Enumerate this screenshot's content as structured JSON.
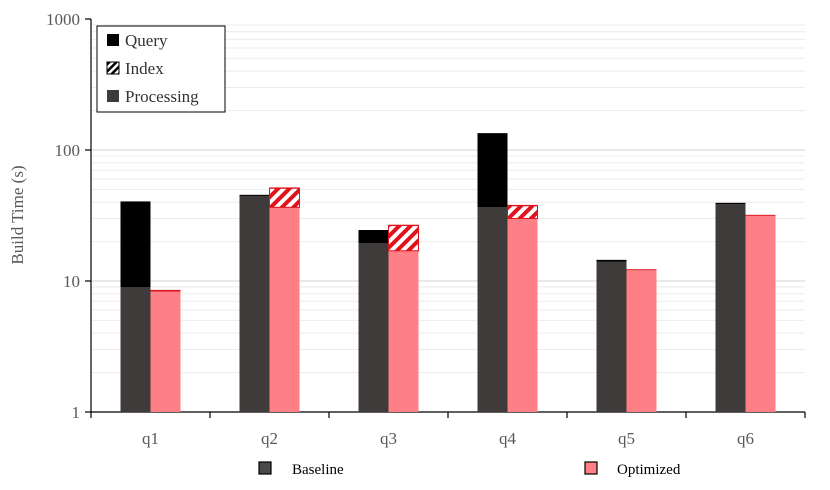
{
  "chart_data": {
    "type": "bar",
    "subtype": "stacked-grouped",
    "title": "",
    "xlabel": "",
    "ylabel": "Build Time (s)",
    "yscale": "log",
    "ylim": [
      1,
      1000
    ],
    "yticks": [
      "1",
      "10",
      "100",
      "1000"
    ],
    "grid": "horizontal",
    "categories": [
      "q1",
      "q2",
      "q3",
      "q4",
      "q5",
      "q6"
    ],
    "components": [
      "Processing",
      "Index",
      "Query"
    ],
    "groups": [
      {
        "name": "Baseline",
        "color": "#3f3b3b",
        "stacks": [
          {
            "category": "q1",
            "Processing": 8.0,
            "Index": 0,
            "Query": 31.5
          },
          {
            "category": "q2",
            "Processing": 44.0,
            "Index": 0,
            "Query": 0.5
          },
          {
            "category": "q3",
            "Processing": 18.5,
            "Index": 0,
            "Query": 5.0
          },
          {
            "category": "q4",
            "Processing": 35.5,
            "Index": 0,
            "Query": 98.0
          },
          {
            "category": "q5",
            "Processing": 13.0,
            "Index": 0,
            "Query": 0.5
          },
          {
            "category": "q6",
            "Processing": 37.5,
            "Index": 0,
            "Query": 1.0
          }
        ]
      },
      {
        "name": "Optimized",
        "color": "#ff7f86",
        "accent": "#e0121b",
        "stacks": [
          {
            "category": "q1",
            "Processing": 7.3,
            "Index": 0,
            "Query": 0.25
          },
          {
            "category": "q2",
            "Processing": 35.5,
            "Index": 14.5,
            "Query": 0.8
          },
          {
            "category": "q3",
            "Processing": 16.0,
            "Index": 9.5,
            "Query": 0.4
          },
          {
            "category": "q4",
            "Processing": 29.0,
            "Index": 7.5,
            "Query": 0.6
          },
          {
            "category": "q5",
            "Processing": 11.1,
            "Index": 0,
            "Query": 0.2
          },
          {
            "category": "q6",
            "Processing": 30.5,
            "Index": 0,
            "Query": 0.5
          }
        ]
      }
    ],
    "legend": {
      "placement": "top-left",
      "items": [
        {
          "label": "Query",
          "style": "solid-black"
        },
        {
          "label": "Index",
          "style": "hatched"
        },
        {
          "label": "Processing",
          "style": "solid-dark-gray"
        }
      ]
    },
    "group_legend": {
      "placement": "bottom",
      "items": [
        {
          "label": "Baseline",
          "color": "#4a4a4a"
        },
        {
          "label": "Optimized",
          "color": "#ff7f86"
        }
      ]
    }
  }
}
